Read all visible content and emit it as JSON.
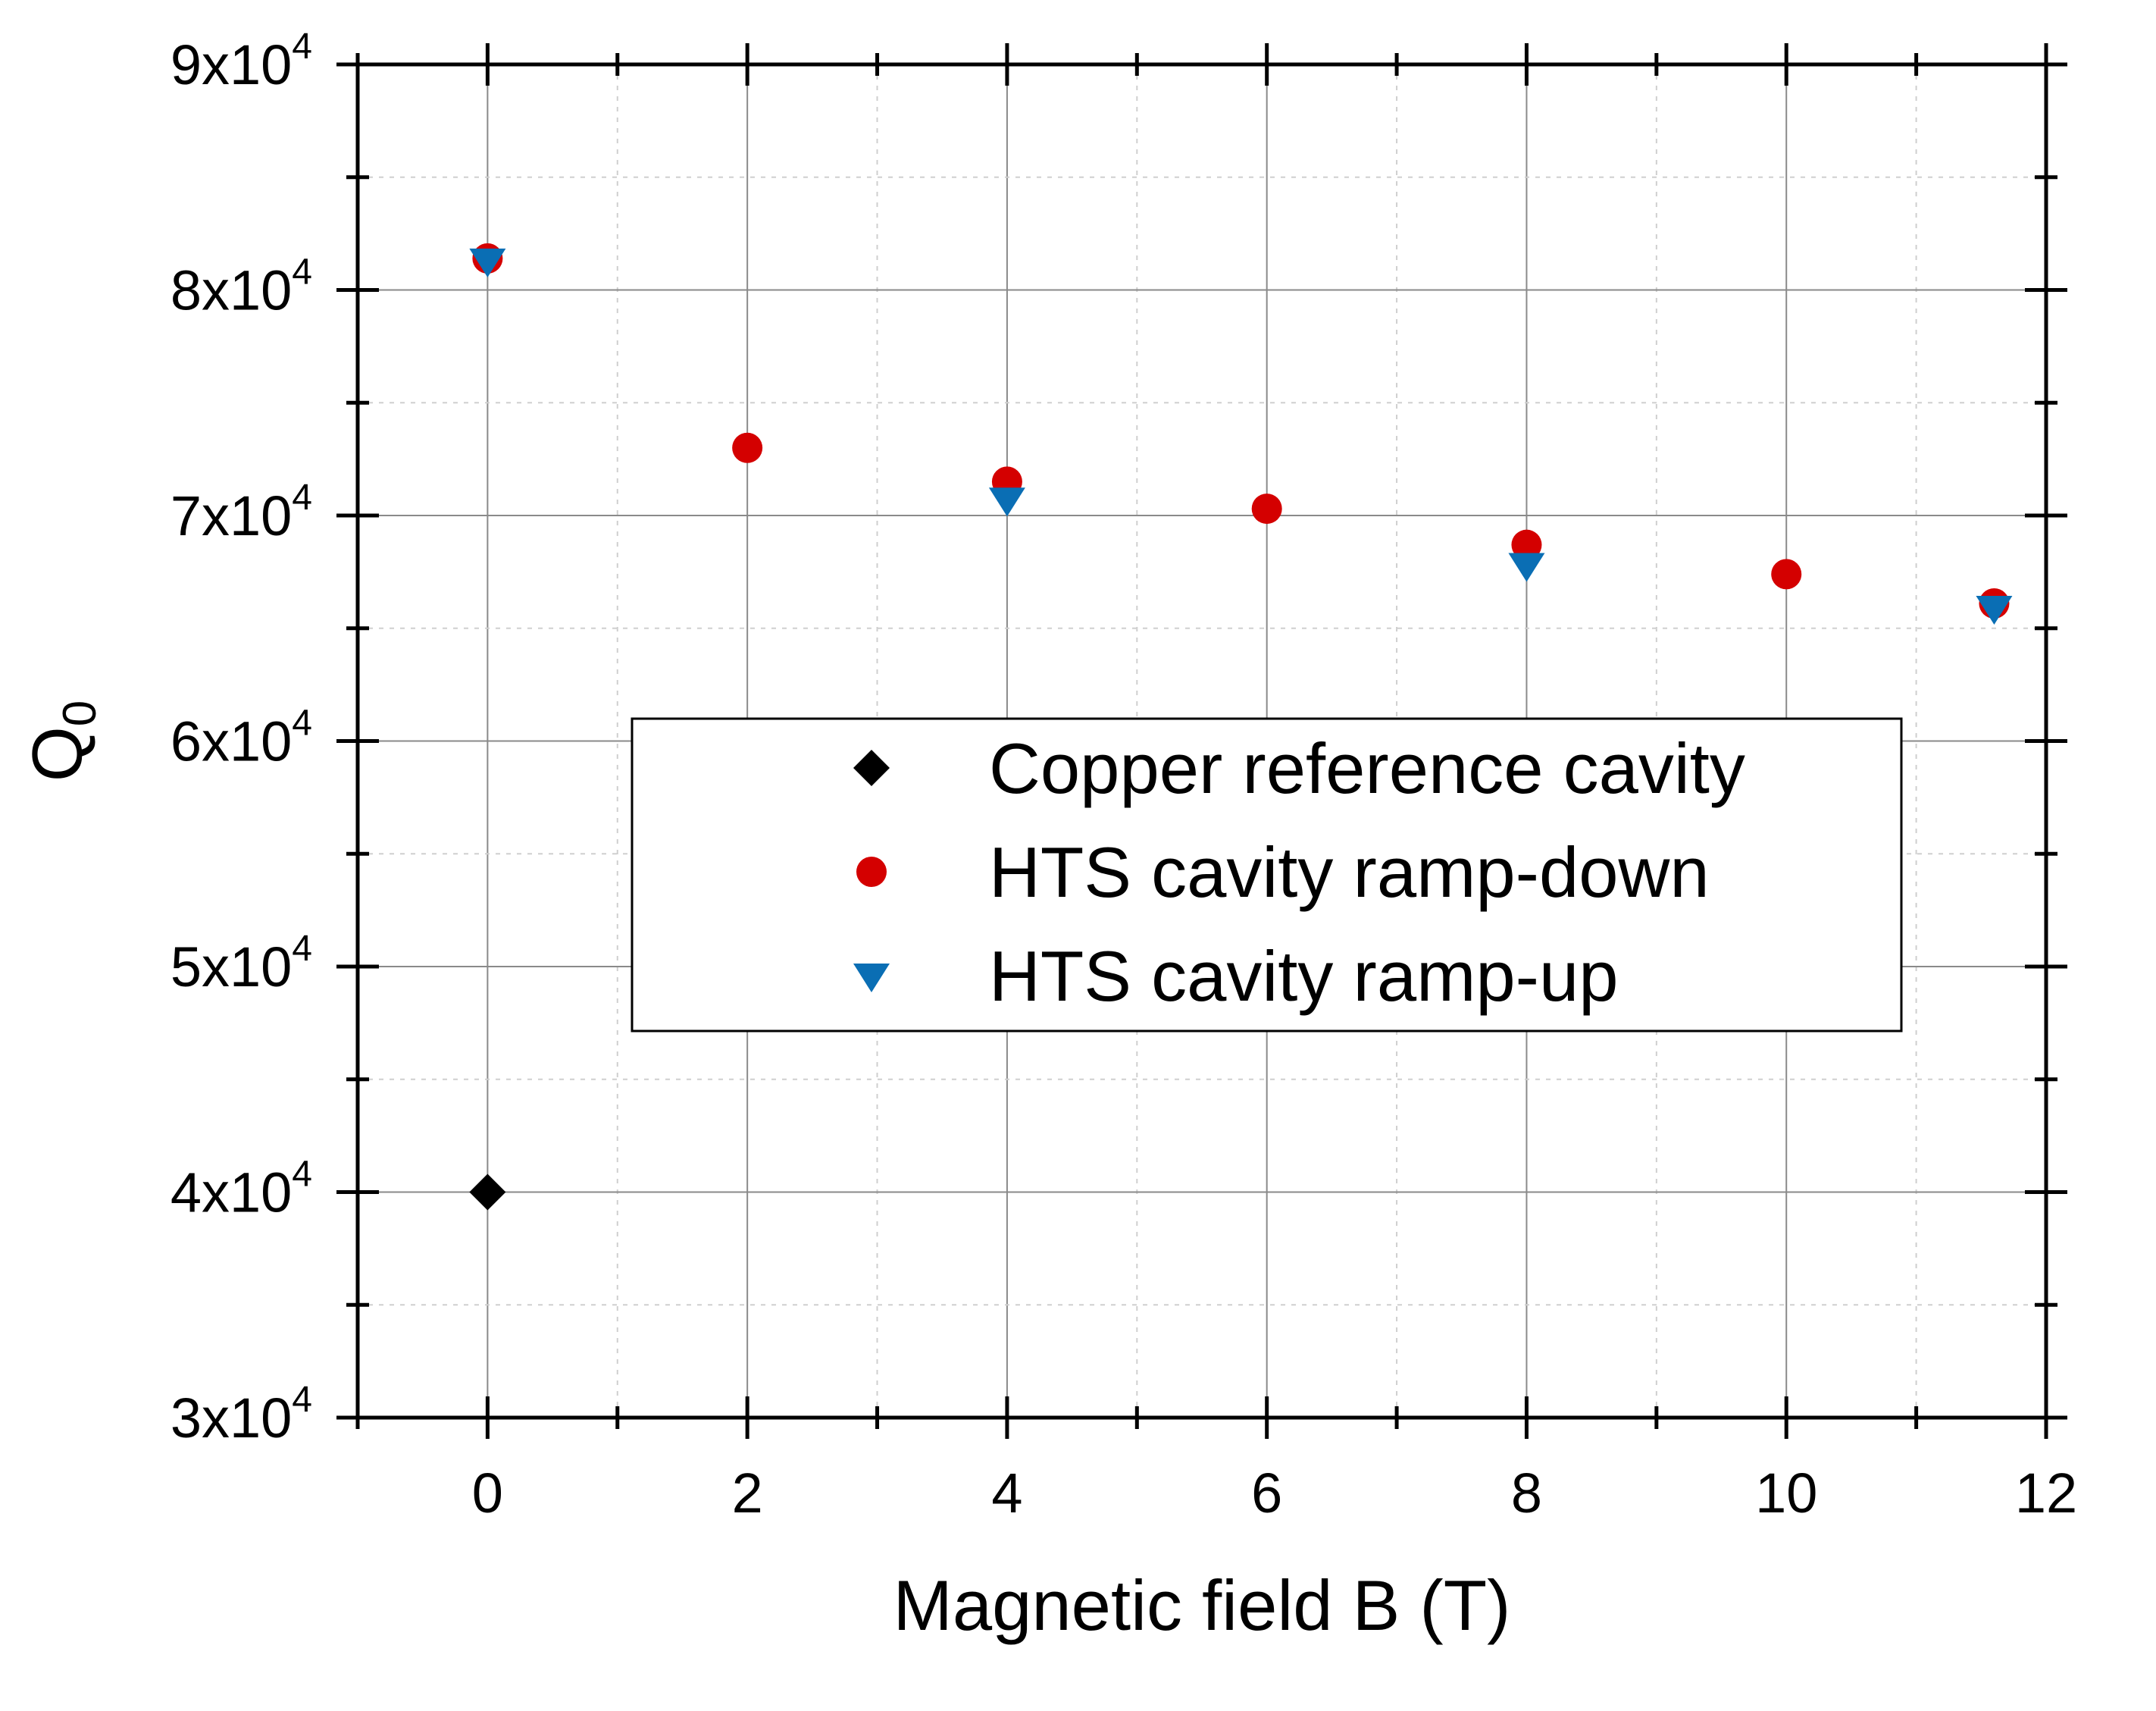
{
  "chart_data": {
    "type": "scatter",
    "title": "",
    "xlabel": "Magnetic field B (T)",
    "ylabel_main": "Q",
    "ylabel_sub": "0",
    "xlim": [
      -1,
      12
    ],
    "ylim": [
      30000,
      90000
    ],
    "x_ticks": [
      0,
      2,
      4,
      6,
      8,
      10,
      12
    ],
    "x_tick_labels": [
      "0",
      "2",
      "4",
      "6",
      "8",
      "10",
      "12"
    ],
    "x_minor_ticks": [
      -1,
      1,
      3,
      5,
      7,
      9,
      11
    ],
    "y_ticks": [
      30000,
      40000,
      50000,
      60000,
      70000,
      80000,
      90000
    ],
    "y_tick_labels": [
      {
        "mantissa": "3x10",
        "exp": "4"
      },
      {
        "mantissa": "4x10",
        "exp": "4"
      },
      {
        "mantissa": "5x10",
        "exp": "4"
      },
      {
        "mantissa": "6x10",
        "exp": "4"
      },
      {
        "mantissa": "7x10",
        "exp": "4"
      },
      {
        "mantissa": "8x10",
        "exp": "4"
      },
      {
        "mantissa": "9x10",
        "exp": "4"
      }
    ],
    "y_minor_ticks": [
      35000,
      45000,
      55000,
      65000,
      75000,
      85000
    ],
    "grid": true,
    "legend_position": "center-right",
    "series": [
      {
        "name": "Copper reference cavity",
        "marker": "diamond",
        "color": "#000000",
        "points": [
          {
            "x": 0,
            "y": 40000
          }
        ]
      },
      {
        "name": "HTS cavity ramp-down",
        "marker": "circle",
        "color": "#d40000",
        "points": [
          {
            "x": 0,
            "y": 81400
          },
          {
            "x": 2,
            "y": 73000
          },
          {
            "x": 4,
            "y": 71500
          },
          {
            "x": 6,
            "y": 70300
          },
          {
            "x": 8,
            "y": 68700
          },
          {
            "x": 10,
            "y": 67400
          },
          {
            "x": 11.6,
            "y": 66100
          }
        ]
      },
      {
        "name": "HTS cavity ramp-up",
        "marker": "triangle-down",
        "color": "#0a6eb4",
        "points": [
          {
            "x": 0,
            "y": 81300
          },
          {
            "x": 4,
            "y": 70700
          },
          {
            "x": 8,
            "y": 67800
          },
          {
            "x": 11.6,
            "y": 65900
          }
        ]
      }
    ]
  }
}
